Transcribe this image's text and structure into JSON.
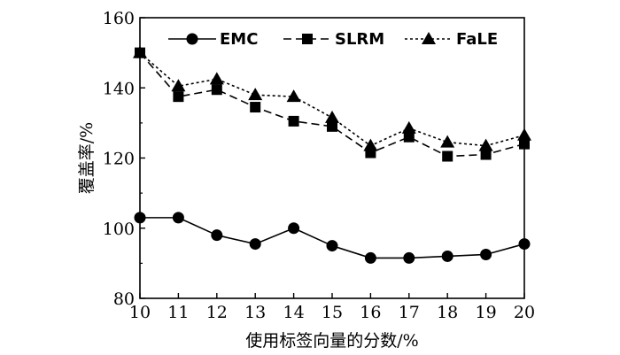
{
  "chart_data": {
    "type": "line",
    "title": "",
    "xlabel": "使用标签向量的分数/%",
    "ylabel": "覆盖率/%",
    "x": [
      10,
      11,
      12,
      13,
      14,
      15,
      16,
      17,
      18,
      19,
      20
    ],
    "xlim": [
      10,
      20
    ],
    "ylim": [
      80,
      160
    ],
    "xticks": [
      "10",
      "11",
      "12",
      "13",
      "14",
      "15",
      "16",
      "17",
      "18",
      "19",
      "20"
    ],
    "yticks": [
      "80",
      "100",
      "120",
      "140",
      "160"
    ],
    "grid": false,
    "legend_position": "top",
    "series": [
      {
        "name": "EMC",
        "marker": "circle",
        "line": "solid",
        "values": [
          103,
          103,
          98,
          95.5,
          100,
          95,
          91.5,
          91.5,
          92,
          92.5,
          95.5
        ]
      },
      {
        "name": "SLRM",
        "marker": "square",
        "line": "dashed",
        "values": [
          150,
          137.5,
          139.5,
          134.5,
          130.5,
          129,
          121.5,
          126,
          120.5,
          121,
          124
        ]
      },
      {
        "name": "FaLE",
        "marker": "triangle",
        "line": "dotted",
        "values": [
          150,
          140.5,
          142.5,
          138,
          137.5,
          131.5,
          123.5,
          128.5,
          124.5,
          123.5,
          126.5
        ]
      }
    ]
  }
}
